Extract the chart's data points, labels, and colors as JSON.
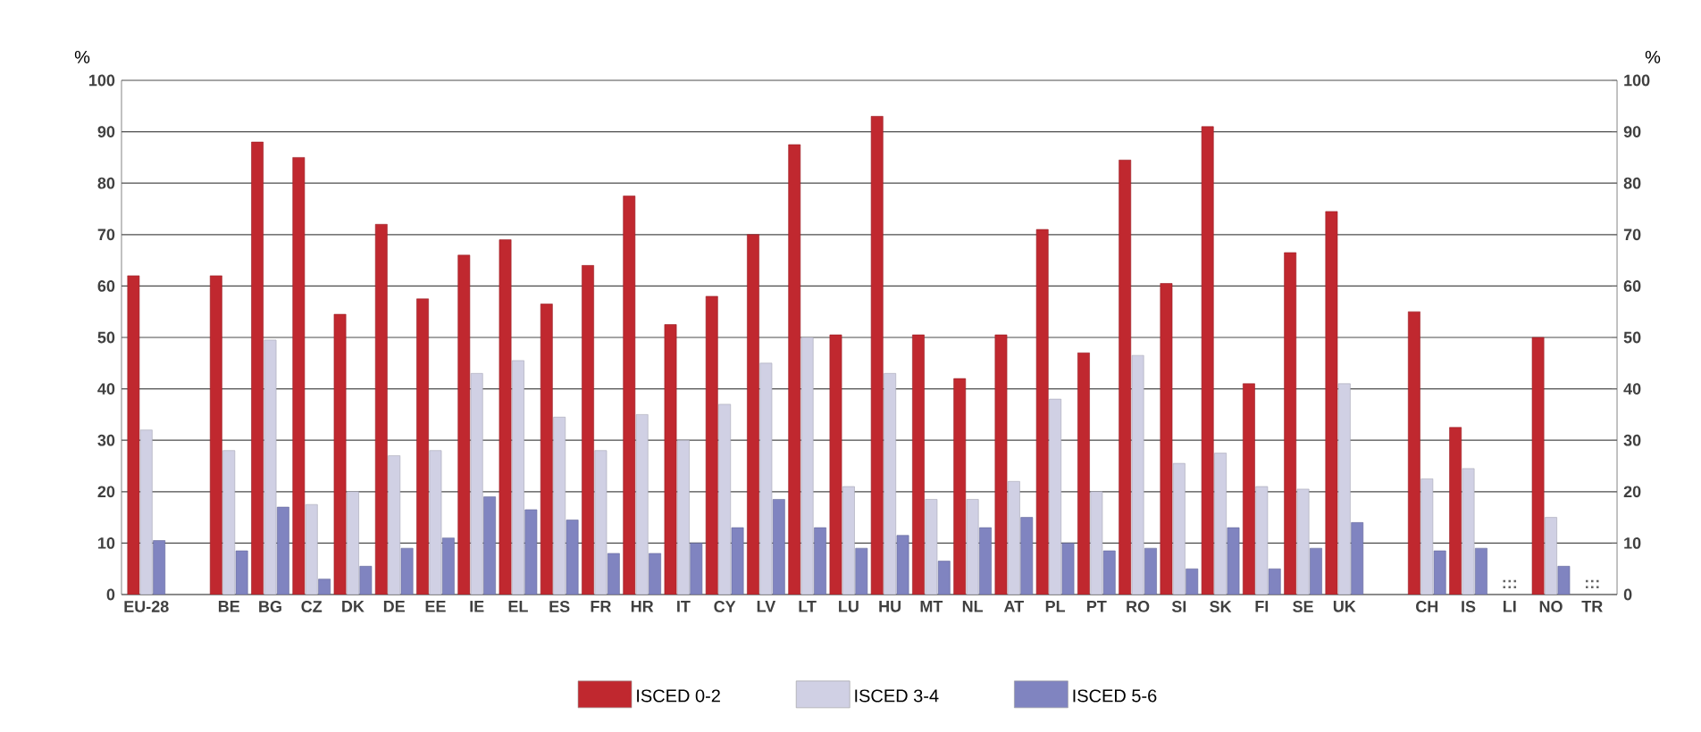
{
  "chart_data": {
    "type": "bar",
    "ylabel": "%",
    "y2label": "%",
    "categories": [
      "EU-28",
      null,
      "BE",
      "BG",
      "CZ",
      "DK",
      "DE",
      "EE",
      "IE",
      "EL",
      "ES",
      "FR",
      "HR",
      "IT",
      "CY",
      "LV",
      "LT",
      "LU",
      "HU",
      "MT",
      "NL",
      "AT",
      "PL",
      "PT",
      "RO",
      "SI",
      "SK",
      "FI",
      "SE",
      "UK",
      null,
      "CH",
      "IS",
      "LI",
      "NO",
      "TR"
    ],
    "series": [
      {
        "name": "ISCED 0-2",
        "color": "#c0282f",
        "values": [
          62,
          null,
          62,
          88,
          85,
          54.5,
          72,
          57.5,
          66,
          69,
          56.5,
          64,
          77.5,
          52.5,
          58,
          70,
          87.5,
          50.5,
          93,
          50.5,
          42,
          50.5,
          71,
          47,
          84.5,
          60.5,
          91,
          41,
          66.5,
          74.5,
          null,
          55,
          32.5,
          null,
          50,
          null
        ]
      },
      {
        "name": "ISCED 3-4",
        "color": "#d0d0e4",
        "values": [
          32,
          null,
          28,
          49.5,
          17.5,
          20,
          27,
          28,
          43,
          45.5,
          34.5,
          28,
          35,
          30,
          37,
          45,
          50,
          21,
          43,
          18.5,
          18.5,
          22,
          38,
          20,
          46.5,
          25.5,
          27.5,
          21,
          20.5,
          41,
          null,
          22.5,
          24.5,
          null,
          15,
          null
        ]
      },
      {
        "name": "ISCED 5-6",
        "color": "#8084c0",
        "values": [
          10.5,
          null,
          8.5,
          17,
          3,
          5.5,
          9,
          11,
          19,
          16.5,
          14.5,
          8,
          8,
          10,
          13,
          18.5,
          13,
          9,
          11.5,
          6.5,
          13,
          15,
          10,
          8.5,
          9,
          5,
          13,
          5,
          9,
          14,
          null,
          8.5,
          9,
          null,
          5.5,
          null
        ]
      }
    ],
    "ylim": [
      0,
      100
    ],
    "yticks": [
      0,
      10,
      20,
      30,
      40,
      50,
      60,
      70,
      80,
      90,
      100
    ],
    "y2lim": [
      0,
      100
    ],
    "y2ticks": [
      0,
      10,
      20,
      30,
      40,
      50,
      60,
      70,
      80,
      90,
      100
    ],
    "grid": "y",
    "legend": "bottom",
    "annotations": [
      ":::",
      ":::"
    ]
  }
}
